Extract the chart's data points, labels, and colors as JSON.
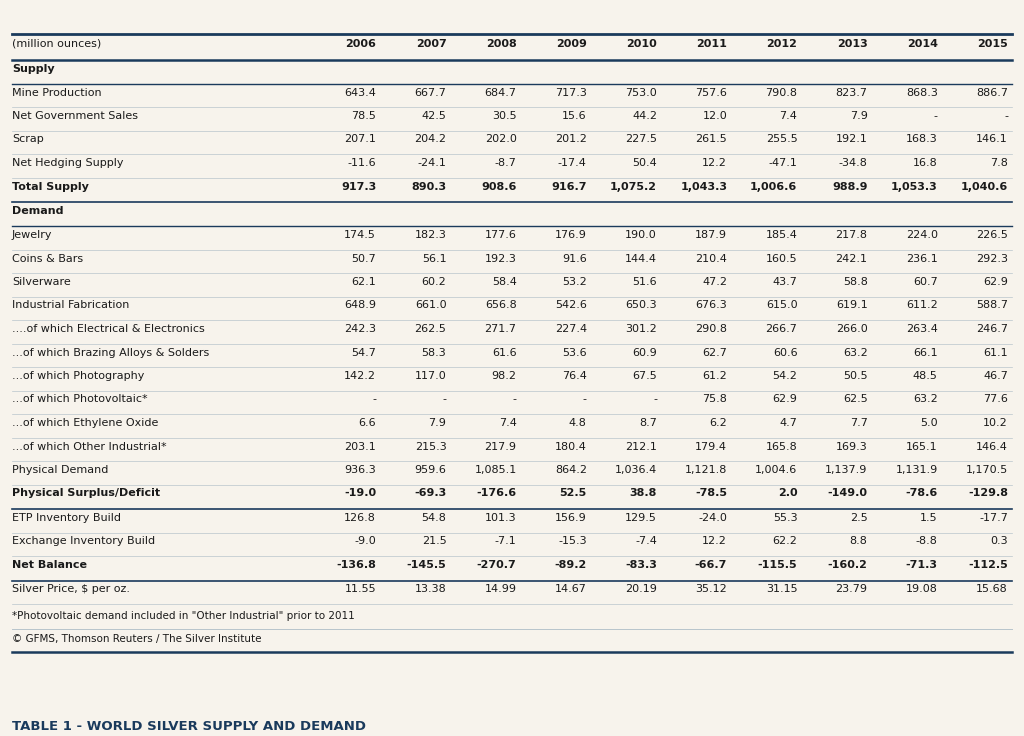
{
  "title": "TABLE 1 - WORLD SILVER SUPPLY AND DEMAND",
  "subtitle_note": "*Photovoltaic demand included in \"Other Industrial\" prior to 2011",
  "footer": "© GFMS, Thomson Reuters / The Silver Institute",
  "columns": [
    "(million ounces)",
    "2006",
    "2007",
    "2008",
    "2009",
    "2010",
    "2011",
    "2012",
    "2013",
    "2014",
    "2015"
  ],
  "rows": [
    {
      "label": "Supply",
      "values": [],
      "type": "section_header"
    },
    {
      "label": "Mine Production",
      "values": [
        "643.4",
        "667.7",
        "684.7",
        "717.3",
        "753.0",
        "757.6",
        "790.8",
        "823.7",
        "868.3",
        "886.7"
      ],
      "type": "normal"
    },
    {
      "label": "Net Government Sales",
      "values": [
        "78.5",
        "42.5",
        "30.5",
        "15.6",
        "44.2",
        "12.0",
        "7.4",
        "7.9",
        "-",
        "-"
      ],
      "type": "normal"
    },
    {
      "label": "Scrap",
      "values": [
        "207.1",
        "204.2",
        "202.0",
        "201.2",
        "227.5",
        "261.5",
        "255.5",
        "192.1",
        "168.3",
        "146.1"
      ],
      "type": "normal"
    },
    {
      "label": "Net Hedging Supply",
      "values": [
        "-11.6",
        "-24.1",
        "-8.7",
        "-17.4",
        "50.4",
        "12.2",
        "-47.1",
        "-34.8",
        "16.8",
        "7.8"
      ],
      "type": "normal"
    },
    {
      "label": "Total Supply",
      "values": [
        "917.3",
        "890.3",
        "908.6",
        "916.7",
        "1,075.2",
        "1,043.3",
        "1,006.6",
        "988.9",
        "1,053.3",
        "1,040.6"
      ],
      "type": "bold"
    },
    {
      "label": "Demand",
      "values": [],
      "type": "section_header"
    },
    {
      "label": "Jewelry",
      "values": [
        "174.5",
        "182.3",
        "177.6",
        "176.9",
        "190.0",
        "187.9",
        "185.4",
        "217.8",
        "224.0",
        "226.5"
      ],
      "type": "normal"
    },
    {
      "label": "Coins & Bars",
      "values": [
        "50.7",
        "56.1",
        "192.3",
        "91.6",
        "144.4",
        "210.4",
        "160.5",
        "242.1",
        "236.1",
        "292.3"
      ],
      "type": "normal"
    },
    {
      "label": "Silverware",
      "values": [
        "62.1",
        "60.2",
        "58.4",
        "53.2",
        "51.6",
        "47.2",
        "43.7",
        "58.8",
        "60.7",
        "62.9"
      ],
      "type": "normal"
    },
    {
      "label": "Industrial Fabrication",
      "values": [
        "648.9",
        "661.0",
        "656.8",
        "542.6",
        "650.3",
        "676.3",
        "615.0",
        "619.1",
        "611.2",
        "588.7"
      ],
      "type": "normal"
    },
    {
      "label": "....of which Electrical & Electronics",
      "values": [
        "242.3",
        "262.5",
        "271.7",
        "227.4",
        "301.2",
        "290.8",
        "266.7",
        "266.0",
        "263.4",
        "246.7"
      ],
      "type": "normal"
    },
    {
      "label": "...of which Brazing Alloys & Solders",
      "values": [
        "54.7",
        "58.3",
        "61.6",
        "53.6",
        "60.9",
        "62.7",
        "60.6",
        "63.2",
        "66.1",
        "61.1"
      ],
      "type": "normal"
    },
    {
      "label": "...of which Photography",
      "values": [
        "142.2",
        "117.0",
        "98.2",
        "76.4",
        "67.5",
        "61.2",
        "54.2",
        "50.5",
        "48.5",
        "46.7"
      ],
      "type": "normal"
    },
    {
      "label": "...of which Photovoltaic*",
      "values": [
        "-",
        "-",
        "-",
        "-",
        "-",
        "75.8",
        "62.9",
        "62.5",
        "63.2",
        "77.6"
      ],
      "type": "normal"
    },
    {
      "label": "...of which Ethylene Oxide",
      "values": [
        "6.6",
        "7.9",
        "7.4",
        "4.8",
        "8.7",
        "6.2",
        "4.7",
        "7.7",
        "5.0",
        "10.2"
      ],
      "type": "normal"
    },
    {
      "label": "...of which Other Industrial*",
      "values": [
        "203.1",
        "215.3",
        "217.9",
        "180.4",
        "212.1",
        "179.4",
        "165.8",
        "169.3",
        "165.1",
        "146.4"
      ],
      "type": "normal"
    },
    {
      "label": "Physical Demand",
      "values": [
        "936.3",
        "959.6",
        "1,085.1",
        "864.2",
        "1,036.4",
        "1,121.8",
        "1,004.6",
        "1,137.9",
        "1,131.9",
        "1,170.5"
      ],
      "type": "normal"
    },
    {
      "label": "Physical Surplus/Deficit",
      "values": [
        "-19.0",
        "-69.3",
        "-176.6",
        "52.5",
        "38.8",
        "-78.5",
        "2.0",
        "-149.0",
        "-78.6",
        "-129.8"
      ],
      "type": "bold"
    },
    {
      "label": "ETP Inventory Build",
      "values": [
        "126.8",
        "54.8",
        "101.3",
        "156.9",
        "129.5",
        "-24.0",
        "55.3",
        "2.5",
        "1.5",
        "-17.7"
      ],
      "type": "normal"
    },
    {
      "label": "Exchange Inventory Build",
      "values": [
        "-9.0",
        "21.5",
        "-7.1",
        "-15.3",
        "-7.4",
        "12.2",
        "62.2",
        "8.8",
        "-8.8",
        "0.3"
      ],
      "type": "normal"
    },
    {
      "label": "Net Balance",
      "values": [
        "-136.8",
        "-145.5",
        "-270.7",
        "-89.2",
        "-83.3",
        "-66.7",
        "-115.5",
        "-160.2",
        "-71.3",
        "-112.5"
      ],
      "type": "bold"
    },
    {
      "label": "Silver Price, $ per oz.",
      "values": [
        "11.55",
        "13.38",
        "14.99",
        "14.67",
        "20.19",
        "35.12",
        "31.15",
        "23.79",
        "19.08",
        "15.68"
      ],
      "type": "normal"
    }
  ],
  "bg_color": "#f7f3ec",
  "title_color": "#1a3a5c",
  "border_color": "#1a3a5c",
  "text_color": "#1a1a1a",
  "line_color": "#b8c4cc",
  "thick_line_color": "#1a3a5c"
}
